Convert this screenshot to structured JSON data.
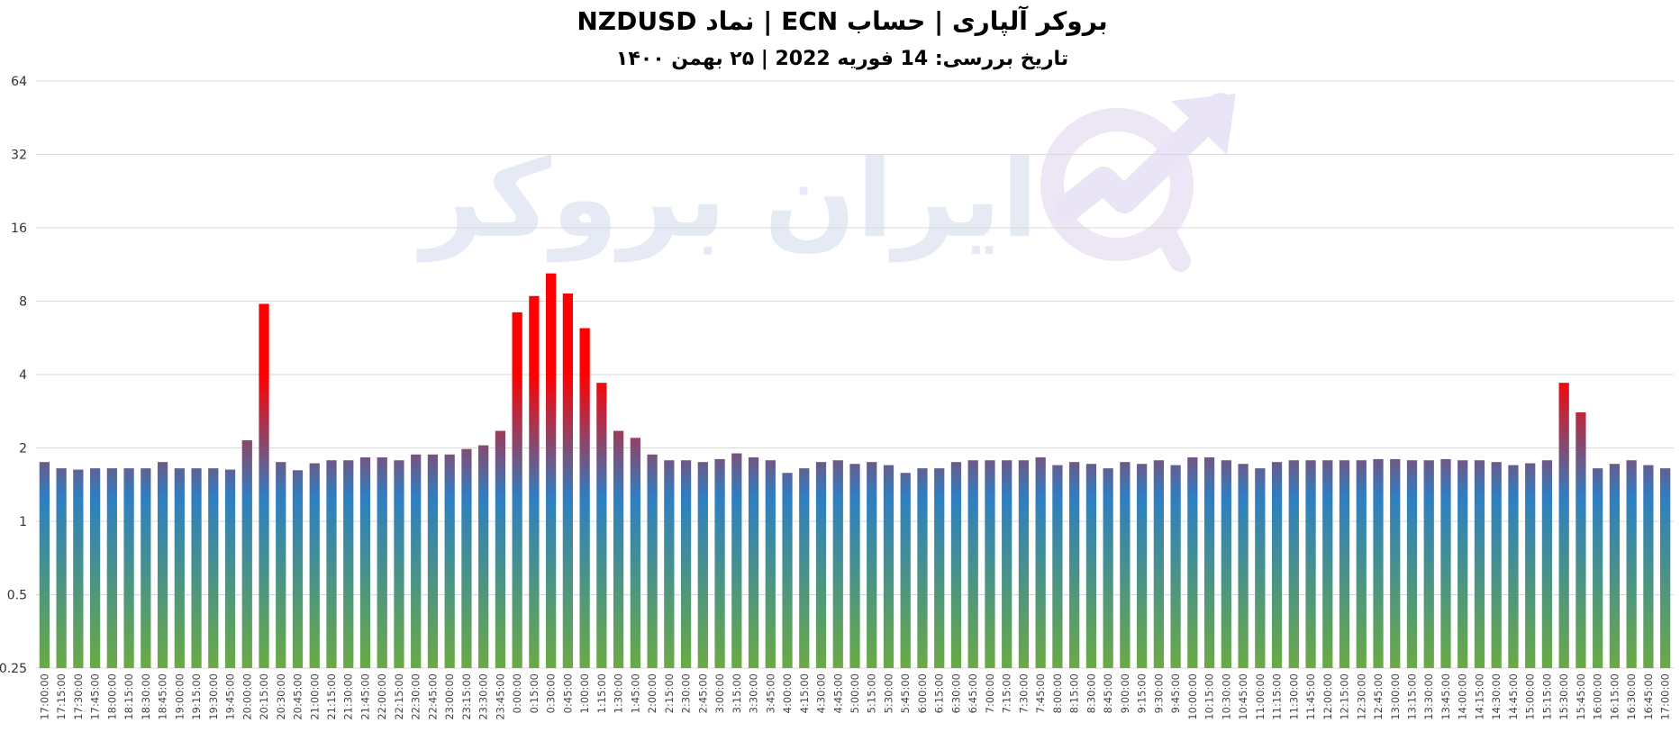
{
  "chart_data": {
    "type": "bar",
    "title": "بروکر آلپاری | حساب ECN | نماد NZDUSD",
    "subtitle": "تاریخ بررسی: 14 فوریه 2022 | ۲۵ بهمن ۱۴۰۰",
    "watermark": "ایران بروکر",
    "yscale": "log2",
    "ylim": [
      0.25,
      64
    ],
    "yticks": [
      0.25,
      0.5,
      1,
      2,
      4,
      8,
      16,
      32,
      64
    ],
    "ytick_labels": [
      "0.25",
      "0.5",
      "1",
      "2",
      "4",
      "8",
      "16",
      "32",
      "64"
    ],
    "grid": true,
    "gradient_colors": {
      "top": "#ff0000",
      "middle": "#2e7fc2",
      "bottom": "#6aaa44"
    },
    "categories": [
      "17:00:00",
      "17:15:00",
      "17:30:00",
      "17:45:00",
      "18:00:00",
      "18:15:00",
      "18:30:00",
      "18:45:00",
      "19:00:00",
      "19:15:00",
      "19:30:00",
      "19:45:00",
      "20:00:00",
      "20:15:00",
      "20:30:00",
      "20:45:00",
      "21:00:00",
      "21:15:00",
      "21:30:00",
      "21:45:00",
      "22:00:00",
      "22:15:00",
      "22:30:00",
      "22:45:00",
      "23:00:00",
      "23:15:00",
      "23:30:00",
      "23:45:00",
      "0:00:00",
      "0:15:00",
      "0:30:00",
      "0:45:00",
      "1:00:00",
      "1:15:00",
      "1:30:00",
      "1:45:00",
      "2:00:00",
      "2:15:00",
      "2:30:00",
      "2:45:00",
      "3:00:00",
      "3:15:00",
      "3:30:00",
      "3:45:00",
      "4:00:00",
      "4:15:00",
      "4:30:00",
      "4:45:00",
      "5:00:00",
      "5:15:00",
      "5:30:00",
      "5:45:00",
      "6:00:00",
      "6:15:00",
      "6:30:00",
      "6:45:00",
      "7:00:00",
      "7:15:00",
      "7:30:00",
      "7:45:00",
      "8:00:00",
      "8:15:00",
      "8:30:00",
      "8:45:00",
      "9:00:00",
      "9:15:00",
      "9:30:00",
      "9:45:00",
      "10:00:00",
      "10:15:00",
      "10:30:00",
      "10:45:00",
      "11:00:00",
      "11:15:00",
      "11:30:00",
      "11:45:00",
      "12:00:00",
      "12:15:00",
      "12:30:00",
      "12:45:00",
      "13:00:00",
      "13:15:00",
      "13:30:00",
      "13:45:00",
      "14:00:00",
      "14:15:00",
      "14:30:00",
      "14:45:00",
      "15:00:00",
      "15:15:00",
      "15:30:00",
      "15:45:00",
      "16:00:00",
      "16:15:00",
      "16:30:00",
      "16:45:00",
      "17:00:00"
    ],
    "values": [
      1.75,
      1.65,
      1.63,
      1.65,
      1.65,
      1.65,
      1.65,
      1.75,
      1.65,
      1.65,
      1.65,
      1.63,
      2.15,
      7.8,
      1.75,
      1.62,
      1.73,
      1.78,
      1.78,
      1.83,
      1.83,
      1.78,
      1.88,
      1.88,
      1.88,
      1.98,
      2.05,
      2.35,
      7.2,
      8.4,
      10.4,
      8.6,
      6.2,
      3.7,
      2.35,
      2.2,
      1.88,
      1.78,
      1.78,
      1.75,
      1.8,
      1.9,
      1.83,
      1.78,
      1.58,
      1.65,
      1.75,
      1.78,
      1.72,
      1.75,
      1.7,
      1.58,
      1.65,
      1.65,
      1.75,
      1.78,
      1.78,
      1.78,
      1.78,
      1.83,
      1.7,
      1.75,
      1.72,
      1.65,
      1.75,
      1.72,
      1.78,
      1.7,
      1.83,
      1.83,
      1.78,
      1.72,
      1.65,
      1.75,
      1.78,
      1.78,
      1.78,
      1.78,
      1.78,
      1.8,
      1.8,
      1.78,
      1.78,
      1.8,
      1.78,
      1.78,
      1.75,
      1.7,
      1.73,
      1.78,
      3.7,
      2.8,
      1.65,
      1.72,
      1.78,
      1.7,
      1.65
    ]
  }
}
